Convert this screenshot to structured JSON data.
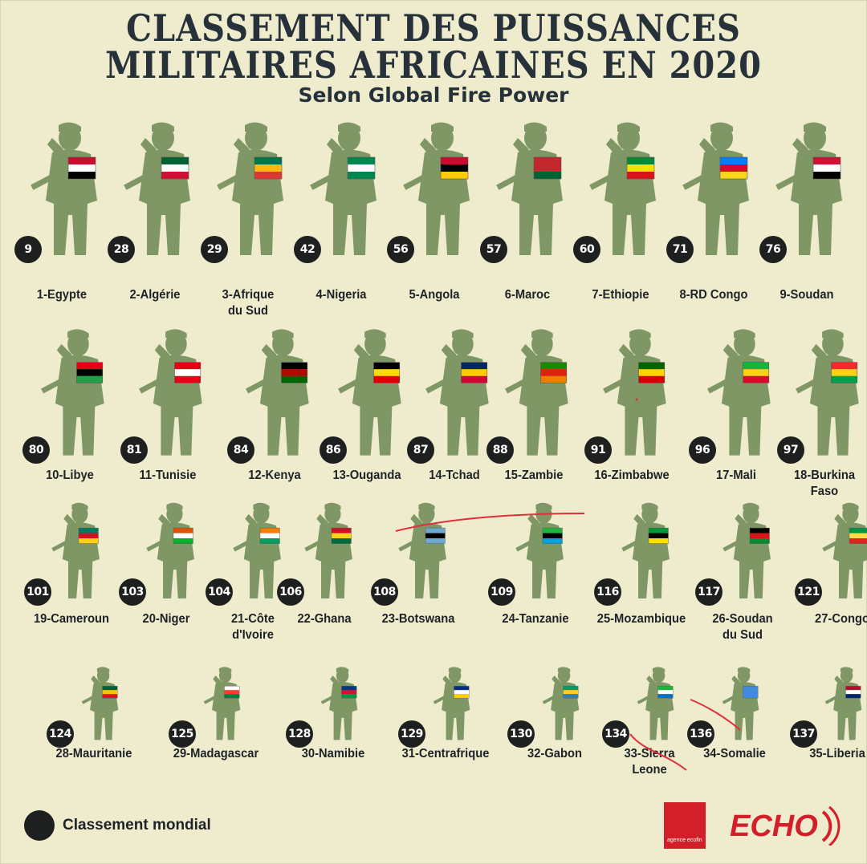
{
  "title_line1": "CLASSEMENT DES PUISSANCES",
  "title_line2": "MILITAIRES AFRICAINES EN 2020",
  "subtitle": "Selon Global Fire Power",
  "legend_label": "Classement mondial",
  "logo_box_text": "agence ecofin",
  "logo_echo": "ECHO",
  "soldier_color": "#7f9765",
  "rows": [
    [
      {
        "label": "1-Egypte",
        "rank": "9",
        "flag": [
          "#c8102e",
          "#ffffff",
          "#000000"
        ]
      },
      {
        "label": "2-Algérie",
        "rank": "28",
        "flag": [
          "#006233",
          "#ffffff",
          "#d21034"
        ]
      },
      {
        "label": "3-Afrique\ndu Sud",
        "rank": "29",
        "flag": [
          "#007749",
          "#ffb612",
          "#de3831"
        ]
      },
      {
        "label": "4-Nigeria",
        "rank": "42",
        "flag": [
          "#008751",
          "#ffffff",
          "#008751"
        ]
      },
      {
        "label": "5-Angola",
        "rank": "56",
        "flag": [
          "#cc092f",
          "#000000",
          "#ffcb00"
        ]
      },
      {
        "label": "6-Maroc",
        "rank": "57",
        "flag": [
          "#c1272d",
          "#c1272d",
          "#006233"
        ]
      },
      {
        "label": "7-Ethiopie",
        "rank": "60",
        "flag": [
          "#078930",
          "#fcdd09",
          "#da121a"
        ]
      },
      {
        "label": "8-RD Congo",
        "rank": "71",
        "flag": [
          "#007fff",
          "#ce1021",
          "#f7d618"
        ]
      },
      {
        "label": "9-Soudan",
        "rank": "76",
        "flag": [
          "#d21034",
          "#ffffff",
          "#000000"
        ]
      }
    ],
    [
      {
        "label": "10-Libye",
        "rank": "80",
        "flag": [
          "#e70013",
          "#000000",
          "#239e46"
        ]
      },
      {
        "label": "11-Tunisie",
        "rank": "81",
        "flag": [
          "#e70013",
          "#ffffff",
          "#e70013"
        ]
      },
      {
        "label": "12-Kenya",
        "rank": "84",
        "flag": [
          "#000000",
          "#bb0000",
          "#006600"
        ]
      },
      {
        "label": "13-Ouganda",
        "rank": "86",
        "flag": [
          "#000000",
          "#fcdc04",
          "#d90000"
        ]
      },
      {
        "label": "14-Tchad",
        "rank": "87",
        "flag": [
          "#002664",
          "#fecb00",
          "#c60c30"
        ]
      },
      {
        "label": "15-Zambie",
        "rank": "88",
        "flag": [
          "#198a00",
          "#de2010",
          "#ef7d00"
        ]
      },
      {
        "label": "16-Zimbabwe",
        "rank": "91",
        "flag": [
          "#006400",
          "#ffd200",
          "#d40000"
        ]
      },
      {
        "label": "17-Mali",
        "rank": "96",
        "flag": [
          "#14b53a",
          "#fcd116",
          "#ce1126"
        ]
      },
      {
        "label": "18-Burkina\nFaso",
        "rank": "97",
        "flag": [
          "#ef2b2d",
          "#fcd116",
          "#009e49"
        ]
      }
    ],
    [
      {
        "label": "19-Cameroun",
        "rank": "101",
        "flag": [
          "#007a5e",
          "#ce1126",
          "#fcd116"
        ]
      },
      {
        "label": "20-Niger",
        "rank": "103",
        "flag": [
          "#e05206",
          "#ffffff",
          "#0db02b"
        ]
      },
      {
        "label": "21-Côte\nd'Ivoire",
        "rank": "104",
        "flag": [
          "#f77f00",
          "#ffffff",
          "#009e60"
        ]
      },
      {
        "label": "22-Ghana",
        "rank": "106",
        "flag": [
          "#ce1126",
          "#fcd116",
          "#006b3f"
        ]
      },
      {
        "label": "23-Botswana",
        "rank": "108",
        "flag": [
          "#6da9d2",
          "#000000",
          "#6da9d2"
        ]
      },
      {
        "label": "24-Tanzanie",
        "rank": "109",
        "flag": [
          "#1eb53a",
          "#000000",
          "#00a3dd"
        ]
      },
      {
        "label": "25-Mozambique",
        "rank": "116",
        "flag": [
          "#009739",
          "#000000",
          "#fce100"
        ]
      },
      {
        "label": "26-Soudan\ndu Sud",
        "rank": "117",
        "flag": [
          "#000000",
          "#da121a",
          "#078930"
        ]
      },
      {
        "label": "27-Congo",
        "rank": "121",
        "flag": [
          "#009543",
          "#fbde4a",
          "#dc241f"
        ]
      }
    ],
    [
      {
        "label": "28-Mauritanie",
        "rank": "124",
        "flag": [
          "#006233",
          "#ffc400",
          "#d01c1f"
        ]
      },
      {
        "label": "29-Madagascar",
        "rank": "125",
        "flag": [
          "#ffffff",
          "#fc3d32",
          "#007e3a"
        ]
      },
      {
        "label": "30-Namibie",
        "rank": "128",
        "flag": [
          "#003580",
          "#d21034",
          "#009543"
        ]
      },
      {
        "label": "31-Centrafrique",
        "rank": "129",
        "flag": [
          "#003082",
          "#ffffff",
          "#ffce00"
        ]
      },
      {
        "label": "32-Gabon",
        "rank": "130",
        "flag": [
          "#009e60",
          "#fcd116",
          "#3a75c4"
        ]
      },
      {
        "label": "33-Sierra\nLeone",
        "rank": "134",
        "flag": [
          "#1eb53a",
          "#ffffff",
          "#0072c6"
        ]
      },
      {
        "label": "34-Somalie",
        "rank": "136",
        "flag": [
          "#4189dd",
          "#4189dd",
          "#4189dd"
        ]
      },
      {
        "label": "35-Liberia",
        "rank": "137",
        "flag": [
          "#bf0a30",
          "#ffffff",
          "#002868"
        ]
      }
    ]
  ]
}
